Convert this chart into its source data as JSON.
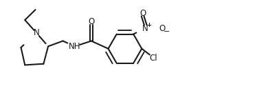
{
  "bg_color": "#ffffff",
  "line_color": "#1a1a1a",
  "line_width": 1.5,
  "fig_width": 3.74,
  "fig_height": 1.38,
  "dpi": 100,
  "xlim": [
    0,
    11.0
  ],
  "ylim": [
    0,
    4.0
  ],
  "labels": {
    "N_pyrrolidine": "N",
    "NH_amide": "NH",
    "O_carbonyl": "O",
    "N_nitro": "N",
    "O1_nitro": "O",
    "O2_nitro": "O",
    "Cl": "Cl",
    "plus": "+",
    "minus": "−"
  },
  "font_size_atom": 8.5,
  "font_size_charge": 6.0
}
